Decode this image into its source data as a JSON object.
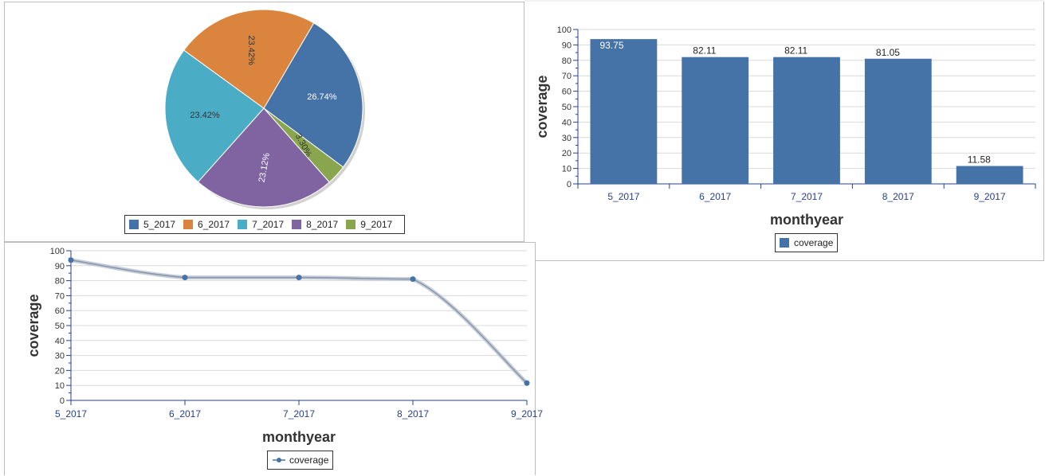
{
  "toolbar": {
    "icons": [
      "table-view-icon",
      "table-settings-icon"
    ]
  },
  "chart_data": [
    {
      "type": "pie",
      "categories": [
        "5_2017",
        "6_2017",
        "7_2017",
        "8_2017",
        "9_2017"
      ],
      "values": [
        26.74,
        23.42,
        23.42,
        23.12,
        3.3
      ],
      "labels": [
        "26.74%",
        "23.42%",
        "23.42%",
        "23.12%",
        "3.30%"
      ],
      "colors": [
        "#4572a7",
        "#db843d",
        "#4bacc6",
        "#8064a2",
        "#89a54e"
      ],
      "label_colors": [
        "#ffffff",
        "#333333",
        "#333333",
        "#ffffff",
        "#333333"
      ],
      "legend": "bottom"
    },
    {
      "type": "bar",
      "categories": [
        "5_2017",
        "6_2017",
        "7_2017",
        "8_2017",
        "9_2017"
      ],
      "series": [
        {
          "name": "coverage",
          "values": [
            93.75,
            82.11,
            82.11,
            81.05,
            11.58
          ],
          "color": "#4572a7"
        }
      ],
      "data_labels": [
        "93.75",
        "82.11",
        "82.11",
        "81.05",
        "11.58"
      ],
      "xlabel": "monthyear",
      "ylabel": "coverage",
      "ylim": [
        0,
        100
      ],
      "yticks": [
        0,
        10,
        20,
        30,
        40,
        50,
        60,
        70,
        80,
        90,
        100
      ],
      "grid": true,
      "legend": "bottom"
    },
    {
      "type": "line",
      "categories": [
        "5_2017",
        "6_2017",
        "7_2017",
        "8_2017",
        "9_2017"
      ],
      "series": [
        {
          "name": "coverage",
          "values": [
            93.75,
            82.11,
            82.11,
            81.05,
            11.58
          ],
          "color": "#4572a7"
        }
      ],
      "xlabel": "monthyear",
      "ylabel": "coverage",
      "ylim": [
        0,
        100
      ],
      "yticks": [
        0,
        10,
        20,
        30,
        40,
        50,
        60,
        70,
        80,
        90,
        100
      ],
      "grid": true,
      "legend": "bottom"
    }
  ]
}
